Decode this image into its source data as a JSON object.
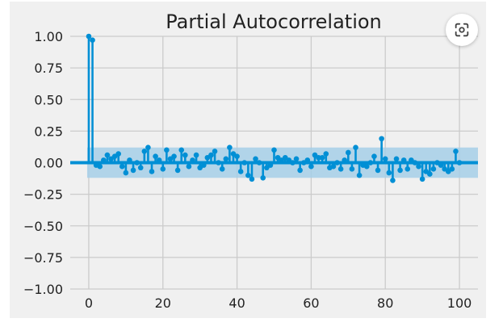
{
  "chart_data": {
    "type": "stem",
    "title": "Partial Autocorrelation",
    "xlabel": "",
    "ylabel": "",
    "xlim": [
      -5,
      105
    ],
    "ylim": [
      -1.0,
      1.0
    ],
    "xticks": [
      0,
      20,
      40,
      60,
      80,
      100
    ],
    "xtick_labels": [
      "0",
      "20",
      "40",
      "60",
      "80",
      "100"
    ],
    "yticks": [
      1.0,
      0.75,
      0.5,
      0.25,
      0.0,
      -0.25,
      -0.5,
      -0.75,
      -1.0
    ],
    "ytick_labels": [
      "1.00",
      "0.75",
      "0.50",
      "0.25",
      "0.00",
      "−0.25",
      "−0.50",
      "−0.75",
      "−1.00"
    ],
    "confidence_band": [
      -0.12,
      0.12
    ],
    "grid": true,
    "colors": {
      "stem": "#008fd5",
      "band": "#a6cfe8",
      "plot_bg": "#f0f0f0",
      "figure_bg": "#f0f0f0",
      "grid": "#cbcbcb",
      "text": "#222222"
    },
    "lags": [
      0,
      1,
      2,
      3,
      4,
      5,
      6,
      7,
      8,
      9,
      10,
      11,
      12,
      13,
      14,
      15,
      16,
      17,
      18,
      19,
      20,
      21,
      22,
      23,
      24,
      25,
      26,
      27,
      28,
      29,
      30,
      31,
      32,
      33,
      34,
      35,
      36,
      37,
      38,
      39,
      40,
      41,
      42,
      43,
      44,
      45,
      46,
      47,
      48,
      49,
      50,
      51,
      52,
      53,
      54,
      55,
      56,
      57,
      58,
      59,
      60,
      61,
      62,
      63,
      64,
      65,
      66,
      67,
      68,
      69,
      70,
      71,
      72,
      73,
      74,
      75,
      76,
      77,
      78,
      79,
      80,
      81,
      82,
      83,
      84,
      85,
      86,
      87,
      88,
      89,
      90,
      91,
      92,
      93,
      94,
      95,
      96,
      97,
      98,
      99,
      100
    ],
    "values": [
      1.0,
      0.97,
      -0.02,
      -0.03,
      0.02,
      0.06,
      0.03,
      0.05,
      0.07,
      -0.03,
      -0.08,
      0.02,
      -0.06,
      0.0,
      -0.04,
      0.09,
      0.12,
      -0.07,
      0.05,
      0.02,
      -0.05,
      0.1,
      0.03,
      0.05,
      -0.06,
      0.1,
      0.06,
      -0.03,
      0.02,
      0.06,
      -0.04,
      -0.02,
      0.04,
      0.06,
      0.09,
      0.0,
      -0.05,
      0.03,
      0.12,
      0.07,
      0.05,
      -0.07,
      0.0,
      -0.1,
      -0.13,
      0.03,
      0.0,
      -0.12,
      -0.04,
      -0.02,
      0.1,
      0.04,
      0.02,
      0.04,
      0.02,
      0.0,
      0.03,
      -0.06,
      0.0,
      0.02,
      -0.03,
      0.06,
      0.04,
      0.04,
      0.07,
      -0.04,
      -0.03,
      0.0,
      -0.05,
      0.02,
      0.08,
      -0.05,
      0.12,
      -0.1,
      -0.02,
      -0.03,
      0.0,
      0.05,
      -0.06,
      0.19,
      0.03,
      -0.08,
      -0.14,
      0.03,
      -0.06,
      0.02,
      -0.05,
      0.02,
      0.0,
      -0.03,
      -0.13,
      -0.07,
      -0.09,
      -0.05,
      0.0,
      -0.02,
      -0.05,
      -0.07,
      -0.05,
      0.09,
      0.0
    ]
  },
  "lens_button": {
    "icon": "google-lens-icon"
  }
}
